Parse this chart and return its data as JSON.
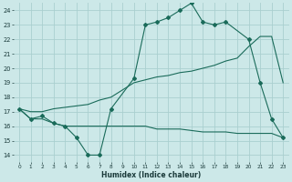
{
  "xlabel": "Humidex (Indice chaleur)",
  "bg_color": "#cce8e8",
  "grid_color": "#aacfcf",
  "line_color": "#1a6b5a",
  "xlim": [
    -0.5,
    23.5
  ],
  "ylim": [
    13.5,
    24.5
  ],
  "xticks": [
    0,
    1,
    2,
    3,
    4,
    5,
    6,
    7,
    8,
    9,
    10,
    11,
    12,
    13,
    14,
    15,
    16,
    17,
    18,
    19,
    20,
    21,
    22,
    23
  ],
  "yticks": [
    14,
    15,
    16,
    17,
    18,
    19,
    20,
    21,
    22,
    23,
    24
  ],
  "line1": {
    "x": [
      0,
      1,
      2,
      3,
      4,
      5,
      6,
      7,
      8,
      10,
      11,
      12,
      13,
      14,
      15,
      16,
      17,
      18,
      20,
      21,
      22,
      23
    ],
    "y": [
      17.2,
      16.5,
      16.7,
      16.2,
      16.0,
      15.2,
      14.0,
      14.0,
      17.2,
      19.3,
      23.0,
      23.2,
      23.5,
      24.0,
      24.5,
      23.2,
      23.0,
      23.2,
      22.0,
      19.0,
      16.5,
      15.2
    ],
    "marker": true
  },
  "line2": {
    "x": [
      0,
      1,
      2,
      3,
      4,
      5,
      6,
      7,
      8,
      9,
      10,
      11,
      12,
      13,
      14,
      15,
      16,
      17,
      18,
      19,
      20,
      21,
      22,
      23
    ],
    "y": [
      17.2,
      17.0,
      17.0,
      17.2,
      17.3,
      17.4,
      17.5,
      17.8,
      18.0,
      18.5,
      19.0,
      19.2,
      19.4,
      19.5,
      19.7,
      19.8,
      20.0,
      20.2,
      20.5,
      20.7,
      21.5,
      22.2,
      22.2,
      19.0
    ],
    "marker": false
  },
  "line3": {
    "x": [
      0,
      1,
      2,
      3,
      4,
      5,
      6,
      7,
      8,
      9,
      10,
      11,
      12,
      13,
      14,
      15,
      16,
      17,
      18,
      19,
      20,
      21,
      22,
      23
    ],
    "y": [
      17.2,
      16.5,
      16.5,
      16.2,
      16.0,
      16.0,
      16.0,
      16.0,
      16.0,
      16.0,
      16.0,
      16.0,
      15.8,
      15.8,
      15.8,
      15.7,
      15.6,
      15.6,
      15.6,
      15.5,
      15.5,
      15.5,
      15.5,
      15.2
    ],
    "marker": false
  }
}
